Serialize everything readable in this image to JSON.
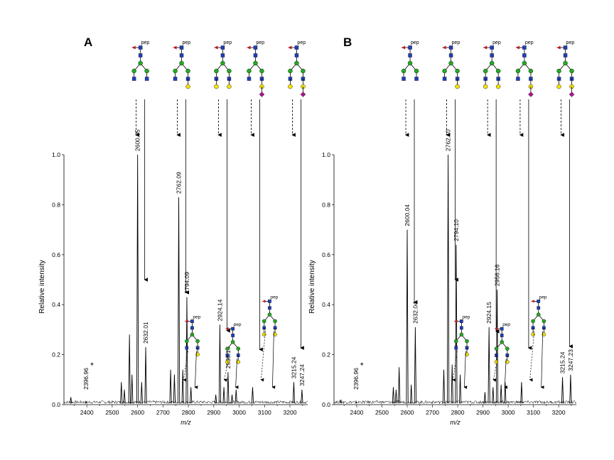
{
  "colors": {
    "glcnac_square": "#1f3fbf",
    "mannose_circle": "#22aa22",
    "galactose_circle": "#f2e200",
    "sialic_diamond": "#b0148c",
    "fucose_triangle": "#c0141e",
    "spectrum_line": "#000000"
  },
  "icons": [
    "glycan-structure-icon",
    "star-marker-icon"
  ],
  "chart_data": [
    {
      "panel_label": "A",
      "type": "line",
      "xlabel": "m/z",
      "ylabel": "Relative intensity",
      "xlim": [
        2310,
        3270
      ],
      "ylim": [
        0,
        1.0
      ],
      "x_ticks": [
        2400,
        2500,
        2600,
        2700,
        2800,
        2900,
        3000,
        3100,
        3200
      ],
      "y_ticks": [
        "0.0",
        "0.2",
        "0.4",
        "0.6",
        "0.8",
        "1.0"
      ],
      "grid": false,
      "peaks": [
        {
          "mz": 2337,
          "intensity": 0.03
        },
        {
          "mz": 2396.96,
          "intensity": 0.01
        },
        {
          "mz": 2536,
          "intensity": 0.09
        },
        {
          "mz": 2548,
          "intensity": 0.06
        },
        {
          "mz": 2568,
          "intensity": 0.28
        },
        {
          "mz": 2578,
          "intensity": 0.12
        },
        {
          "mz": 2600.05,
          "intensity": 1.0
        },
        {
          "mz": 2616,
          "intensity": 0.09
        },
        {
          "mz": 2632.01,
          "intensity": 0.23
        },
        {
          "mz": 2730,
          "intensity": 0.14
        },
        {
          "mz": 2745,
          "intensity": 0.12
        },
        {
          "mz": 2762.09,
          "intensity": 0.83
        },
        {
          "mz": 2778,
          "intensity": 0.14
        },
        {
          "mz": 2794.09,
          "intensity": 0.43
        },
        {
          "mz": 2810,
          "intensity": 0.07
        },
        {
          "mz": 2908,
          "intensity": 0.04
        },
        {
          "mz": 2924.14,
          "intensity": 0.32
        },
        {
          "mz": 2940,
          "intensity": 0.07
        },
        {
          "mz": 2956.14,
          "intensity": 0.13
        },
        {
          "mz": 2972,
          "intensity": 0.04
        },
        {
          "mz": 2988,
          "intensity": 0.06
        },
        {
          "mz": 3053,
          "intensity": 0.07
        },
        {
          "mz": 3215.24,
          "intensity": 0.09
        },
        {
          "mz": 3247.24,
          "intensity": 0.06
        }
      ],
      "peak_labels": [
        {
          "text": "2396.96",
          "mz": 2396.96
        },
        {
          "text": "2600.05",
          "mz": 2600.05
        },
        {
          "text": "2632.01",
          "mz": 2632.01
        },
        {
          "text": "2762.09",
          "mz": 2762.09
        },
        {
          "text": "2794.09",
          "mz": 2794.09
        },
        {
          "text": "2924.14",
          "mz": 2924.14
        },
        {
          "text": "2956.14",
          "mz": 2956.14
        },
        {
          "text": "3215.24",
          "mz": 3215.24
        },
        {
          "text": "3247.24",
          "mz": 3247.24
        }
      ],
      "star_marker": "*",
      "structure_label": "pep"
    },
    {
      "panel_label": "B",
      "type": "line",
      "xlabel": "m/z",
      "ylabel": "Relative intensity",
      "xlim": [
        2310,
        3270
      ],
      "ylim": [
        0,
        1.0
      ],
      "x_ticks": [
        2400,
        2500,
        2600,
        2700,
        2800,
        2900,
        3000,
        3100,
        3200
      ],
      "y_ticks": [
        "0.0",
        "0.2",
        "0.4",
        "0.6",
        "0.8",
        "1.0"
      ],
      "grid": false,
      "peaks": [
        {
          "mz": 2337,
          "intensity": 0.02
        },
        {
          "mz": 2396.96,
          "intensity": 0.01
        },
        {
          "mz": 2545,
          "intensity": 0.07
        },
        {
          "mz": 2556,
          "intensity": 0.06
        },
        {
          "mz": 2568,
          "intensity": 0.15
        },
        {
          "mz": 2600.04,
          "intensity": 0.7
        },
        {
          "mz": 2616,
          "intensity": 0.08
        },
        {
          "mz": 2632.04,
          "intensity": 0.31
        },
        {
          "mz": 2745,
          "intensity": 0.14
        },
        {
          "mz": 2762.1,
          "intensity": 1.0
        },
        {
          "mz": 2778,
          "intensity": 0.16
        },
        {
          "mz": 2794.1,
          "intensity": 0.64
        },
        {
          "mz": 2810,
          "intensity": 0.12
        },
        {
          "mz": 2908,
          "intensity": 0.05
        },
        {
          "mz": 2924.15,
          "intensity": 0.31
        },
        {
          "mz": 2940,
          "intensity": 0.07
        },
        {
          "mz": 2956.16,
          "intensity": 0.46
        },
        {
          "mz": 2972,
          "intensity": 0.08
        },
        {
          "mz": 2988,
          "intensity": 0.09
        },
        {
          "mz": 3053,
          "intensity": 0.09
        },
        {
          "mz": 3215.24,
          "intensity": 0.11
        },
        {
          "mz": 3247.23,
          "intensity": 0.12
        }
      ],
      "peak_labels": [
        {
          "text": "2396.96",
          "mz": 2396.96
        },
        {
          "text": "2600.04",
          "mz": 2600.04
        },
        {
          "text": "2632.04",
          "mz": 2632.04
        },
        {
          "text": "2762.10",
          "mz": 2762.1
        },
        {
          "text": "2794.10",
          "mz": 2794.1
        },
        {
          "text": "2924.15",
          "mz": 2924.15
        },
        {
          "text": "2956.16",
          "mz": 2956.16
        },
        {
          "text": "3215.24",
          "mz": 3215.24
        },
        {
          "text": "3247.23",
          "mz": 3247.23
        }
      ],
      "star_marker": "*",
      "structure_label": "pep"
    }
  ]
}
